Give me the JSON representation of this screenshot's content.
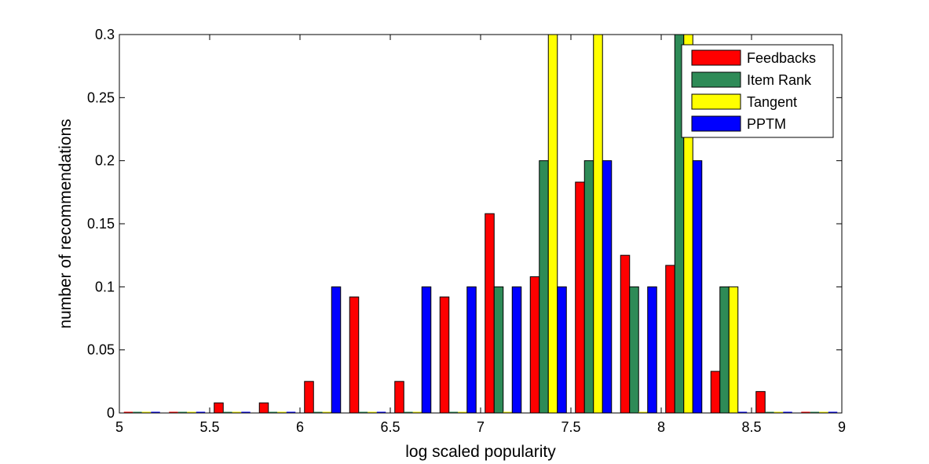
{
  "chart_data": {
    "type": "bar",
    "xlabel": "log scaled popularity",
    "ylabel": "number of recommendations",
    "xlim": [
      5,
      9
    ],
    "ylim": [
      0,
      0.3
    ],
    "x_ticks": [
      "5",
      "5.5",
      "6",
      "6.5",
      "7",
      "7.5",
      "8",
      "8.5",
      "9"
    ],
    "y_ticks": [
      "0",
      "0.05",
      "0.1",
      "0.15",
      "0.2",
      "0.25",
      "0.3"
    ],
    "grid": false,
    "legend_position": "top-right",
    "x": [
      5.125,
      5.375,
      5.625,
      5.875,
      6.125,
      6.375,
      6.625,
      6.875,
      7.125,
      7.375,
      7.625,
      7.875,
      8.125,
      8.375,
      8.625,
      8.875
    ],
    "series": [
      {
        "name": "Feedbacks",
        "color": "#ff0000",
        "values": [
          0,
          0,
          0.008,
          0.008,
          0.025,
          0.092,
          0.025,
          0.092,
          0.158,
          0.108,
          0.183,
          0.125,
          0.117,
          0.033,
          0.017,
          0
        ]
      },
      {
        "name": "Item Rank",
        "color": "#2e8b57",
        "values": [
          0,
          0,
          0,
          0,
          0,
          0,
          0,
          0,
          0.1,
          0.2,
          0.2,
          0.1,
          0.3,
          0.1,
          0,
          0
        ]
      },
      {
        "name": "Tangent",
        "color": "#ffff00",
        "values": [
          0,
          0,
          0,
          0,
          0,
          0,
          0,
          0,
          0,
          0.3,
          0.3,
          0,
          0.3,
          0.1,
          0,
          0
        ]
      },
      {
        "name": "PPTM",
        "color": "#0000ff",
        "values": [
          0,
          0,
          0,
          0,
          0.1,
          0,
          0.1,
          0.1,
          0.1,
          0.1,
          0.2,
          0.1,
          0.2,
          0,
          0,
          0
        ]
      }
    ]
  }
}
